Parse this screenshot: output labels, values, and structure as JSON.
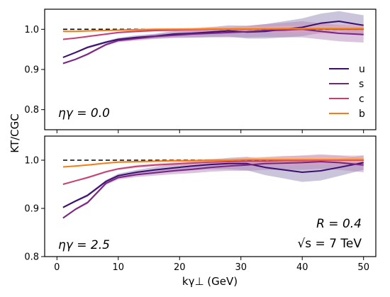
{
  "figure": {
    "ylabel": "KT/CGC",
    "xlabel": "kγ⊥ (GeV)"
  },
  "legend": {
    "items": [
      {
        "label": "u",
        "color": "#3b0f6f"
      },
      {
        "label": "s",
        "color": "#7b2382"
      },
      {
        "label": "c",
        "color": "#c83e73"
      },
      {
        "label": "b",
        "color": "#f57d15"
      }
    ]
  },
  "annotations": {
    "top_eta": "ηγ = 0.0",
    "bottom_eta": "ηγ = 2.5",
    "radius": "R = 0.4",
    "energy": "√s = 7 TeV"
  },
  "chart_data": [
    {
      "type": "line",
      "panel": "top",
      "xlim": [
        -2,
        52
      ],
      "ylim": [
        0.75,
        1.05
      ],
      "yticks": [
        "0.8",
        "0.9",
        "1.0"
      ],
      "ytick_values": [
        0.8,
        0.9,
        1.0
      ],
      "xticks": [],
      "reference_line": {
        "y": 1.0,
        "style": "dashed",
        "color": "#000000"
      },
      "x": [
        1,
        3,
        5,
        8,
        10,
        13,
        16,
        19,
        22,
        25,
        28,
        31,
        34,
        37,
        40,
        43,
        46,
        50
      ],
      "series": [
        {
          "name": "u",
          "color": "#3b0f6f",
          "band": "#8a7fae",
          "values": [
            0.93,
            0.942,
            0.955,
            0.968,
            0.975,
            0.98,
            0.983,
            0.988,
            0.99,
            0.993,
            0.996,
            0.993,
            0.995,
            1.0,
            1.005,
            1.015,
            1.02,
            1.01
          ],
          "band_halfwidth": [
            0.002,
            0.002,
            0.003,
            0.003,
            0.004,
            0.005,
            0.006,
            0.008,
            0.01,
            0.012,
            0.014,
            0.016,
            0.018,
            0.02,
            0.022,
            0.024,
            0.025,
            0.025
          ]
        },
        {
          "name": "s",
          "color": "#7b2382",
          "band": "#b07fb5",
          "values": [
            0.915,
            0.925,
            0.938,
            0.962,
            0.972,
            0.977,
            0.982,
            0.985,
            0.988,
            0.99,
            0.992,
            0.994,
            0.997,
            0.998,
            1.0,
            0.995,
            0.99,
            0.987
          ],
          "band_halfwidth": [
            0.002,
            0.002,
            0.003,
            0.003,
            0.004,
            0.005,
            0.006,
            0.007,
            0.009,
            0.01,
            0.012,
            0.014,
            0.016,
            0.018,
            0.02,
            0.02,
            0.02,
            0.02
          ]
        },
        {
          "name": "c",
          "color": "#c83e73",
          "band": "#e2a0b8",
          "values": [
            0.975,
            0.978,
            0.982,
            0.988,
            0.992,
            0.995,
            0.997,
            0.998,
            0.999,
            1.0,
            1.0,
            1.0,
            1.001,
            1.0,
            1.0,
            1.001,
            1.0,
            1.0
          ],
          "band_halfwidth": [
            0.001,
            0.001,
            0.002,
            0.002,
            0.002,
            0.003,
            0.003,
            0.004,
            0.005,
            0.006,
            0.007,
            0.008,
            0.009,
            0.01,
            0.011,
            0.012,
            0.012,
            0.012
          ]
        },
        {
          "name": "b",
          "color": "#f57d15",
          "band": "#f8be8a",
          "values": [
            0.995,
            0.995,
            0.996,
            0.997,
            0.998,
            0.999,
            1.0,
            1.0,
            1.0,
            1.001,
            1.001,
            1.001,
            1.001,
            1.002,
            1.002,
            1.002,
            1.002,
            1.002
          ],
          "band_halfwidth": [
            0.001,
            0.001,
            0.001,
            0.001,
            0.002,
            0.002,
            0.002,
            0.003,
            0.003,
            0.004,
            0.004,
            0.005,
            0.005,
            0.006,
            0.006,
            0.006,
            0.006,
            0.006
          ]
        }
      ]
    },
    {
      "type": "line",
      "panel": "bottom",
      "xlim": [
        -2,
        52
      ],
      "ylim": [
        0.8,
        1.05
      ],
      "yticks": [
        "0.8",
        "0.9",
        "1.0"
      ],
      "ytick_values": [
        0.8,
        0.9,
        1.0
      ],
      "xticks": [
        "0",
        "10",
        "20",
        "30",
        "40",
        "50"
      ],
      "xtick_values": [
        0,
        10,
        20,
        30,
        40,
        50
      ],
      "reference_line": {
        "y": 1.0,
        "style": "dashed",
        "color": "#000000"
      },
      "x": [
        1,
        3,
        5,
        8,
        10,
        13,
        16,
        19,
        22,
        25,
        28,
        31,
        34,
        37,
        40,
        43,
        46,
        50
      ],
      "series": [
        {
          "name": "u",
          "color": "#3b0f6f",
          "band": "#8a7fae",
          "values": [
            0.902,
            0.915,
            0.927,
            0.956,
            0.968,
            0.975,
            0.98,
            0.984,
            0.988,
            0.991,
            0.993,
            0.993,
            0.985,
            0.98,
            0.975,
            0.978,
            0.985,
            0.995
          ],
          "band_halfwidth": [
            0.002,
            0.002,
            0.003,
            0.003,
            0.004,
            0.005,
            0.006,
            0.008,
            0.009,
            0.01,
            0.012,
            0.014,
            0.016,
            0.018,
            0.02,
            0.02,
            0.018,
            0.015
          ]
        },
        {
          "name": "s",
          "color": "#7b2382",
          "band": "#b07fb5",
          "values": [
            0.88,
            0.898,
            0.912,
            0.952,
            0.964,
            0.97,
            0.974,
            0.978,
            0.981,
            0.985,
            0.988,
            0.99,
            0.993,
            0.994,
            0.995,
            0.997,
            0.995,
            0.99
          ],
          "band_halfwidth": [
            0.002,
            0.002,
            0.003,
            0.003,
            0.004,
            0.005,
            0.006,
            0.007,
            0.008,
            0.009,
            0.01,
            0.012,
            0.013,
            0.014,
            0.015,
            0.015,
            0.015,
            0.015
          ]
        },
        {
          "name": "c",
          "color": "#c83e73",
          "band": "#e2a0b8",
          "values": [
            0.95,
            0.957,
            0.964,
            0.976,
            0.982,
            0.987,
            0.99,
            0.992,
            0.994,
            0.996,
            0.997,
            0.998,
            0.998,
            0.999,
            0.999,
            1.0,
            1.0,
            1.0
          ],
          "band_halfwidth": [
            0.001,
            0.001,
            0.002,
            0.002,
            0.002,
            0.003,
            0.003,
            0.004,
            0.005,
            0.006,
            0.007,
            0.008,
            0.009,
            0.01,
            0.01,
            0.01,
            0.01,
            0.01
          ]
        },
        {
          "name": "b",
          "color": "#f57d15",
          "band": "#f8be8a",
          "values": [
            0.986,
            0.988,
            0.99,
            0.994,
            0.996,
            0.997,
            0.998,
            0.999,
            0.999,
            1.0,
            1.0,
            1.001,
            1.001,
            1.001,
            1.001,
            1.001,
            1.001,
            1.001
          ],
          "band_halfwidth": [
            0.001,
            0.001,
            0.001,
            0.001,
            0.002,
            0.002,
            0.002,
            0.003,
            0.003,
            0.003,
            0.004,
            0.004,
            0.005,
            0.005,
            0.005,
            0.005,
            0.005,
            0.005
          ]
        }
      ]
    }
  ]
}
